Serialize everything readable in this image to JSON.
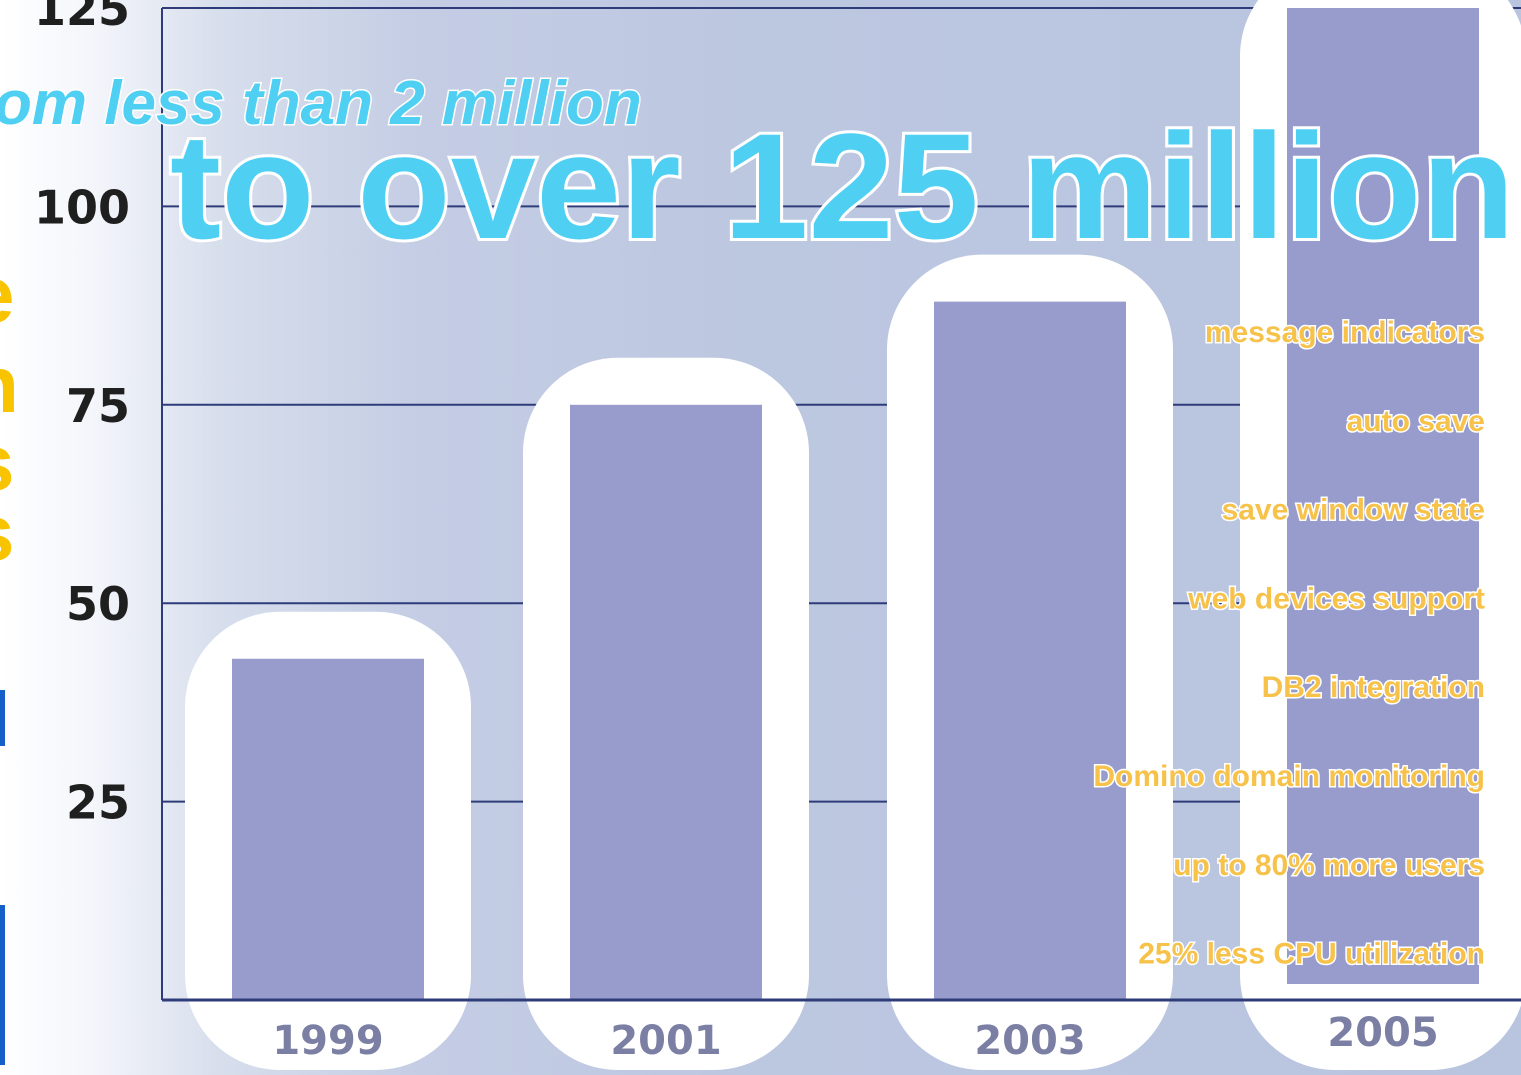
{
  "chart_data": {
    "type": "bar",
    "categories": [
      "1999",
      "2001",
      "2003",
      "2005"
    ],
    "values": [
      43,
      75,
      88,
      125
    ],
    "ylim": [
      0,
      125
    ],
    "yticks": [
      25,
      50,
      75,
      100,
      125
    ],
    "grid": true,
    "bar_color": "#979ccc",
    "highlight_color": "#ffffff",
    "headline": "to over 125 million",
    "subheadline": "om less than 2 million",
    "annotations": [
      "message indicators",
      "auto save",
      "save window state",
      "web devices support",
      "DB2 integration",
      "Domino domain monitoring",
      "up to 80% more users",
      "25% less CPU utilization"
    ],
    "left_edge_glyphs": [
      "e",
      "n",
      "s",
      "s"
    ]
  },
  "colors": {
    "headline": "#4fd0f3",
    "annotation": "#f6c24a",
    "grid": "#2f3c7a",
    "edge_accent": "#1560c8"
  }
}
